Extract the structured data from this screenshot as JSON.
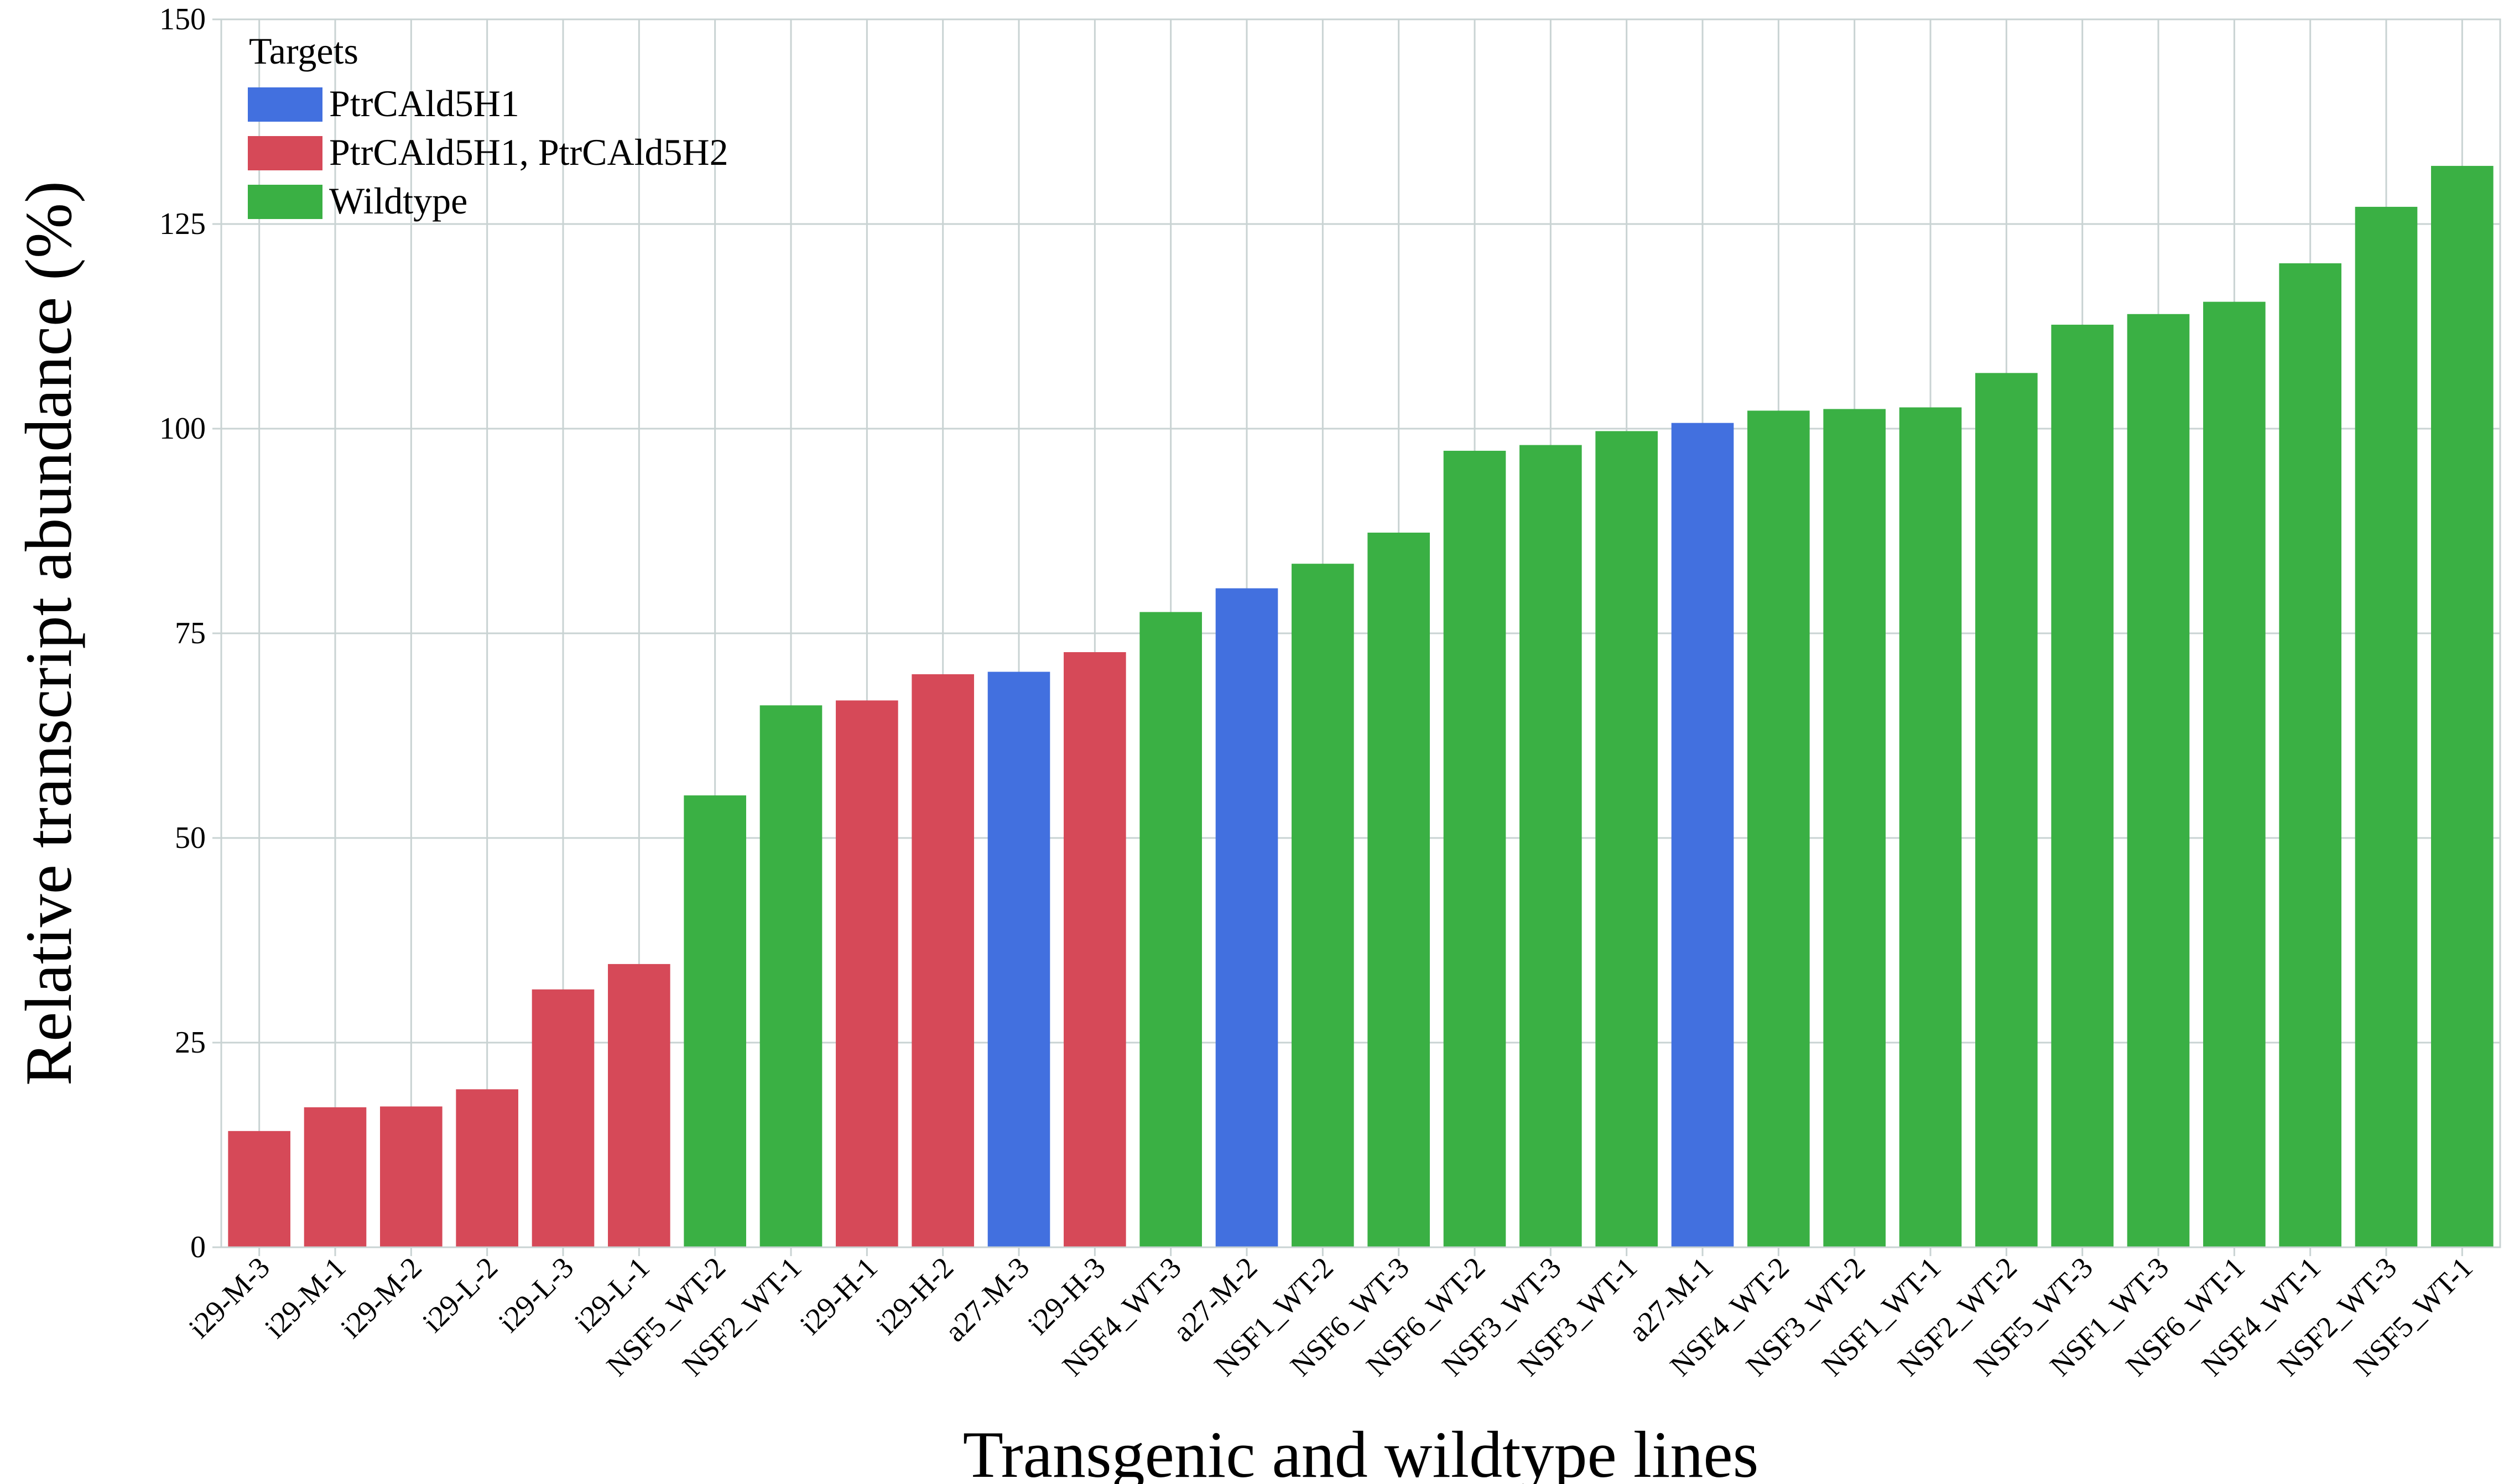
{
  "chart_data": {
    "type": "bar",
    "title": "",
    "xlabel": "Transgenic and wildtype lines",
    "ylabel": "Relative transcript abundance (%)",
    "ylim": [
      0,
      150
    ],
    "yticks": [
      0,
      25,
      50,
      75,
      100,
      125,
      150
    ],
    "grid": true,
    "legend": {
      "title": "Targets",
      "position": "top-left",
      "entries": [
        {
          "label": "PtrCAld5H1",
          "color": "#4270df"
        },
        {
          "label": "PtrCAld5H1, PtrCAld5H2",
          "color": "#d64958"
        },
        {
          "label": "Wildtype",
          "color": "#3ab044"
        }
      ]
    },
    "categories": [
      "i29-M-3",
      "i29-M-1",
      "i29-M-2",
      "i29-L-2",
      "i29-L-3",
      "i29-L-1",
      "NSF5_WT-2",
      "NSF2_WT-1",
      "i29-H-1",
      "i29-H-2",
      "a27-M-3",
      "i29-H-3",
      "NSF4_WT-3",
      "a27-M-2",
      "NSF1_WT-2",
      "NSF6_WT-3",
      "NSF6_WT-2",
      "NSF3_WT-3",
      "NSF3_WT-1",
      "a27-M-1",
      "NSF4_WT-2",
      "NSF3_WT-2",
      "NSF1_WT-1",
      "NSF2_WT-2",
      "NSF5_WT-3",
      "NSF1_WT-3",
      "NSF6_WT-1",
      "NSF4_WT-1",
      "NSF2_WT-3",
      "NSF5_WT-1"
    ],
    "values": [
      14.2,
      17.1,
      17.2,
      19.3,
      31.5,
      34.6,
      55.2,
      66.2,
      66.8,
      70.0,
      70.3,
      72.7,
      77.6,
      80.5,
      83.5,
      87.3,
      97.3,
      98.0,
      99.7,
      100.7,
      102.2,
      102.4,
      102.6,
      106.8,
      112.7,
      114.0,
      115.5,
      120.2,
      127.1,
      132.1
    ],
    "groups": [
      "PtrCAld5H1, PtrCAld5H2",
      "PtrCAld5H1, PtrCAld5H2",
      "PtrCAld5H1, PtrCAld5H2",
      "PtrCAld5H1, PtrCAld5H2",
      "PtrCAld5H1, PtrCAld5H2",
      "PtrCAld5H1, PtrCAld5H2",
      "Wildtype",
      "Wildtype",
      "PtrCAld5H1, PtrCAld5H2",
      "PtrCAld5H1, PtrCAld5H2",
      "PtrCAld5H1",
      "PtrCAld5H1, PtrCAld5H2",
      "Wildtype",
      "PtrCAld5H1",
      "Wildtype",
      "Wildtype",
      "Wildtype",
      "Wildtype",
      "Wildtype",
      "PtrCAld5H1",
      "Wildtype",
      "Wildtype",
      "Wildtype",
      "Wildtype",
      "Wildtype",
      "Wildtype",
      "Wildtype",
      "Wildtype",
      "Wildtype",
      "Wildtype"
    ]
  }
}
